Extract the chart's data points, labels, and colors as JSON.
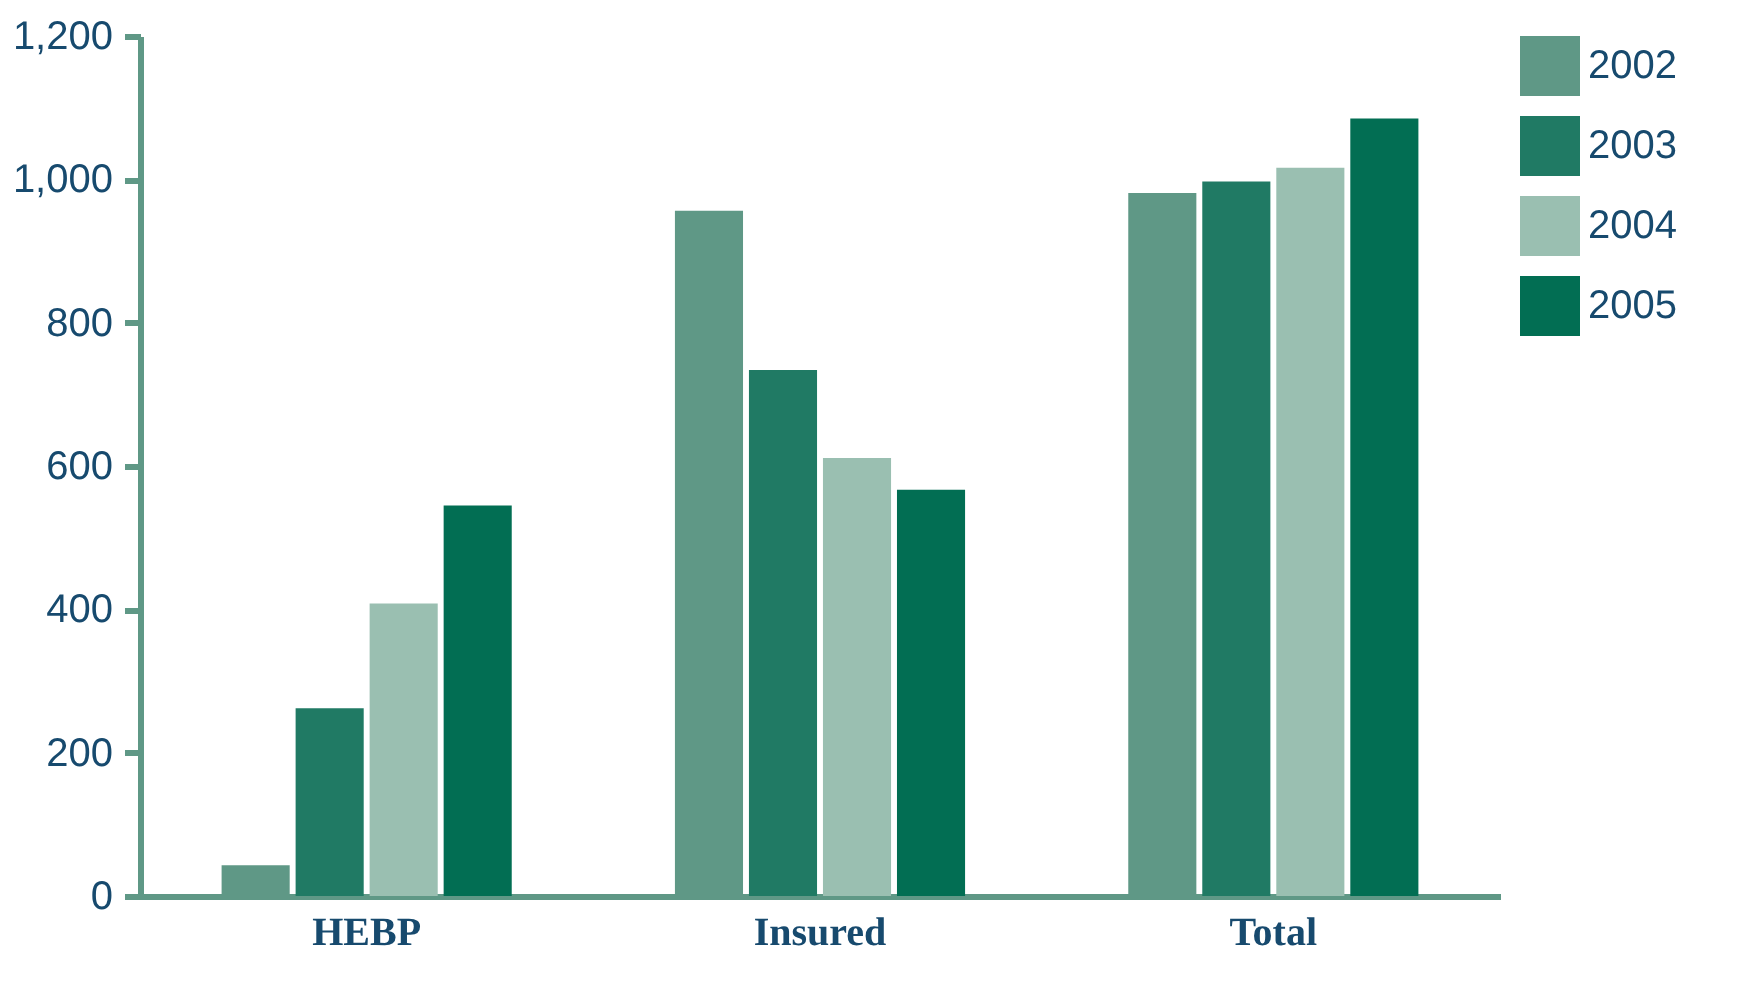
{
  "chart_data": {
    "type": "bar",
    "categories": [
      "HEBP",
      "Insured",
      "Total"
    ],
    "series": [
      {
        "name": "2002",
        "color": "#5f9886",
        "values": [
          43,
          956,
          981
        ]
      },
      {
        "name": "2003",
        "color": "#207a64",
        "values": [
          262,
          734,
          997
        ]
      },
      {
        "name": "2004",
        "color": "#9abfb1",
        "values": [
          408,
          611,
          1016
        ]
      },
      {
        "name": "2005",
        "color": "#026e53",
        "values": [
          545,
          567,
          1085
        ]
      }
    ],
    "ylim": [
      0,
      1200
    ],
    "yticks": [
      0,
      200,
      400,
      600,
      800,
      {
        "value": 1000,
        "label": "1,000"
      },
      {
        "value": 1200,
        "label": "1,200"
      }
    ],
    "grid": false,
    "legend": "top right"
  }
}
